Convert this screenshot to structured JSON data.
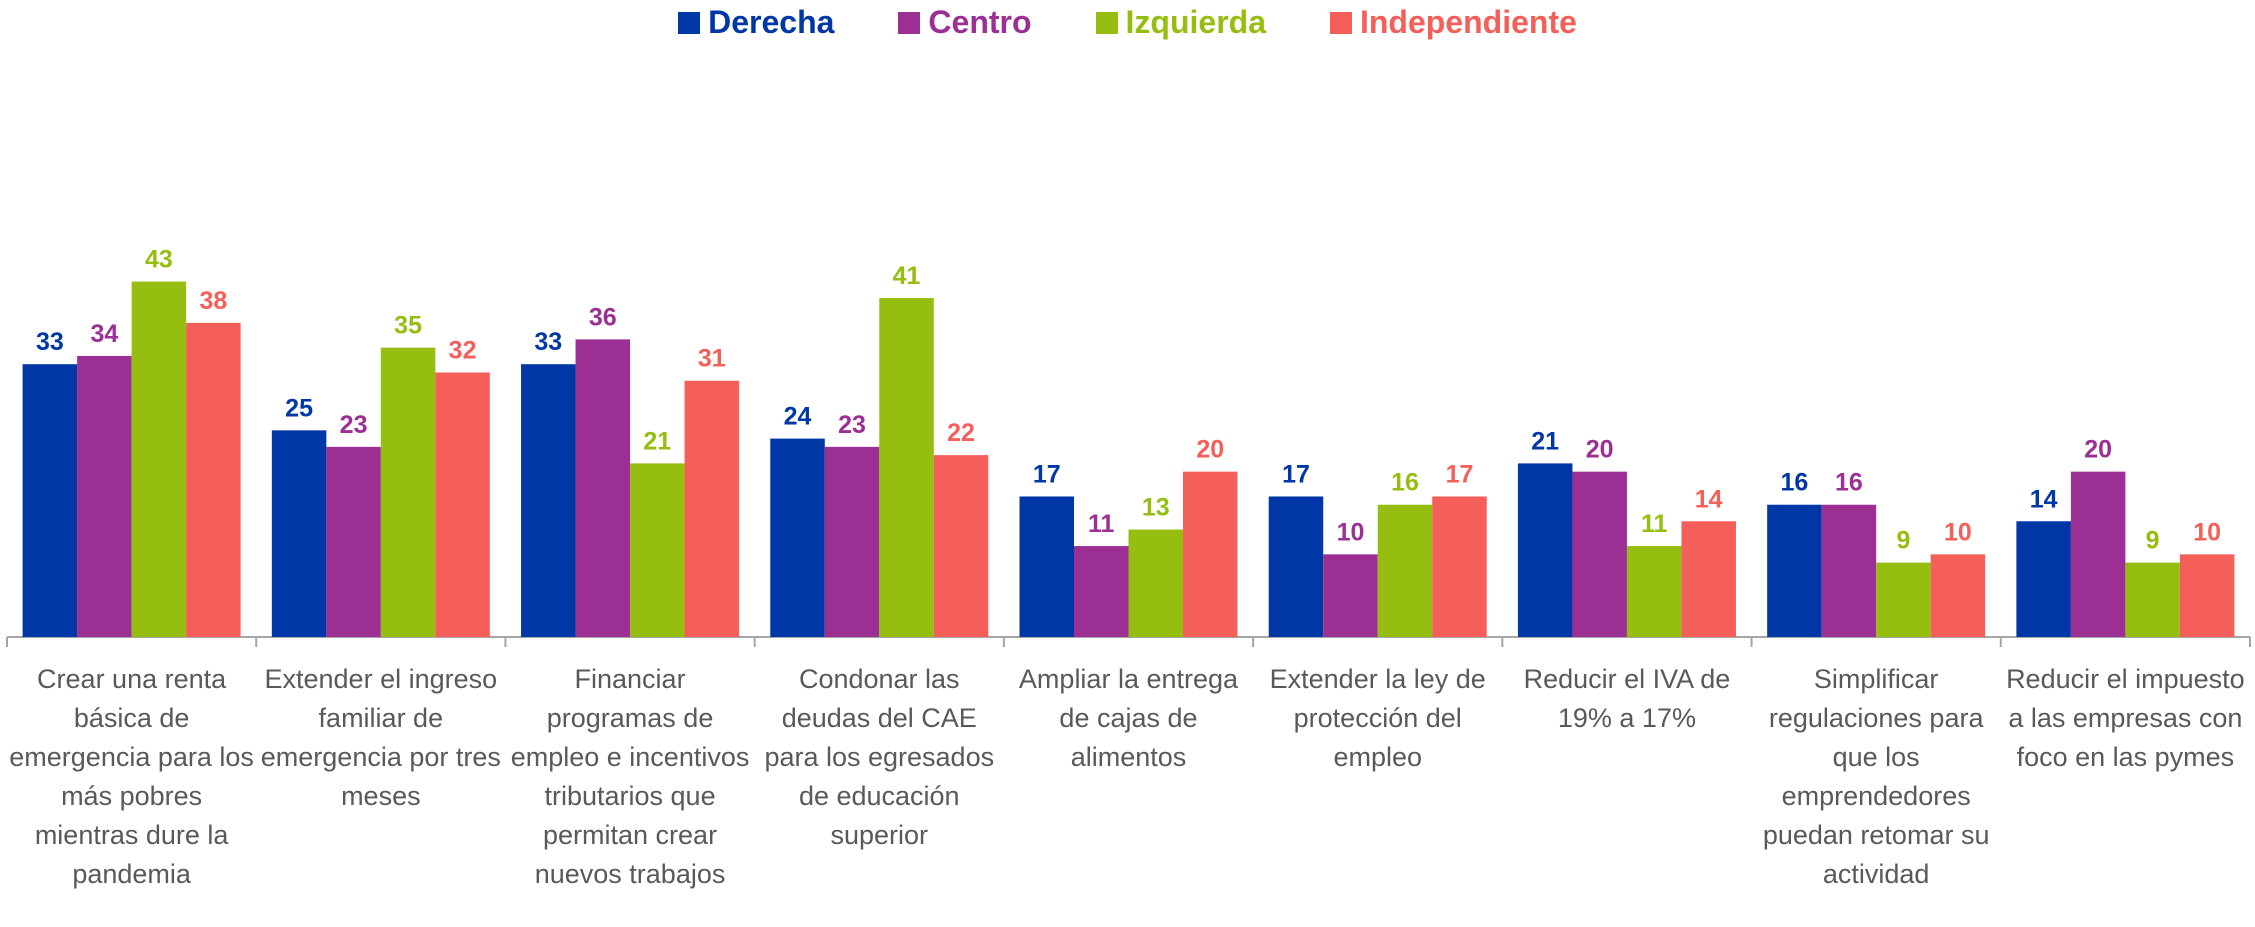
{
  "chart_data": {
    "type": "bar",
    "categories": [
      "Crear una renta básica de emergencia para los más pobres mientras dure la pandemia",
      "Extender el ingreso familiar de emergencia por tres meses",
      "Financiar programas de empleo e incentivos tributarios que permitan crear nuevos trabajos",
      "Condonar las deudas del CAE para los egresados de educación superior",
      "Ampliar la entrega de cajas de alimentos",
      "Extender la ley de protección del empleo",
      "Reducir el IVA de 19% a 17%",
      "Simplificar regulaciones para que los emprendedores puedan retomar su actividad",
      "Reducir el impuesto a las empresas con foco en las pymes"
    ],
    "series": [
      {
        "name": "Derecha",
        "color": "#0037a6",
        "values": [
          33,
          25,
          33,
          24,
          17,
          17,
          21,
          16,
          14
        ]
      },
      {
        "name": "Centro",
        "color": "#9c2f94",
        "values": [
          34,
          23,
          36,
          23,
          11,
          10,
          20,
          16,
          20
        ]
      },
      {
        "name": "Izquierda",
        "color": "#95be10",
        "values": [
          43,
          35,
          21,
          41,
          13,
          16,
          11,
          9,
          9
        ]
      },
      {
        "name": "Independiente",
        "color": "#f45f5a",
        "values": [
          38,
          32,
          31,
          22,
          20,
          17,
          14,
          10,
          10
        ]
      }
    ],
    "ylim": [
      0,
      60
    ],
    "legend": "top"
  }
}
